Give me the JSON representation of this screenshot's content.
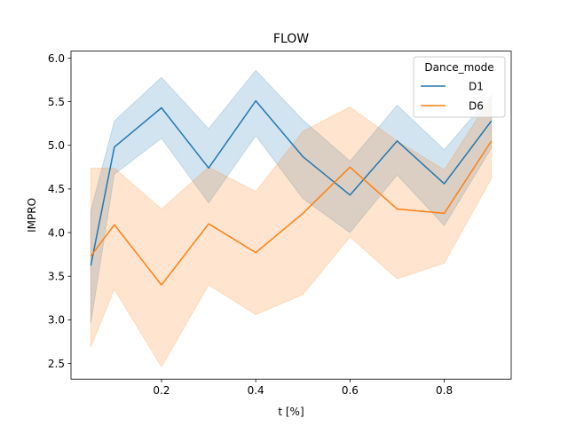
{
  "chart_data": {
    "type": "line",
    "title": "FLOW",
    "xlabel": "t [%]",
    "ylabel": "IMPRO",
    "xlim": [
      0.008,
      0.942
    ],
    "ylim": [
      2.32,
      6.08
    ],
    "xticks": [
      0.2,
      0.4,
      0.6,
      0.8
    ],
    "yticks": [
      2.5,
      3.0,
      3.5,
      4.0,
      4.5,
      5.0,
      5.5,
      6.0
    ],
    "xtick_labels": [
      "0.2",
      "0.4",
      "0.6",
      "0.8"
    ],
    "ytick_labels": [
      "2.5",
      "3.0",
      "3.5",
      "4.0",
      "4.5",
      "5.0",
      "5.5",
      "6.0"
    ],
    "grid": false,
    "legend": {
      "title": "Dance_mode",
      "position": "top-right"
    },
    "x": [
      0.05,
      0.1,
      0.2,
      0.3,
      0.4,
      0.5,
      0.6,
      0.7,
      0.8,
      0.9
    ],
    "series": [
      {
        "name": "D1",
        "color": "#1f77b4",
        "values": [
          3.62,
          4.98,
          5.43,
          4.74,
          5.51,
          4.87,
          4.43,
          5.05,
          4.56,
          5.28
        ],
        "ci_low": [
          2.96,
          4.67,
          5.08,
          4.34,
          5.11,
          4.39,
          4.0,
          4.66,
          4.08,
          4.97
        ],
        "ci_high": [
          4.25,
          5.28,
          5.78,
          5.19,
          5.86,
          5.29,
          4.82,
          5.46,
          4.95,
          5.58
        ]
      },
      {
        "name": "D6",
        "color": "#ff7f0e",
        "values": [
          3.73,
          4.09,
          3.4,
          4.1,
          3.77,
          4.22,
          4.75,
          4.27,
          4.22,
          5.05
        ],
        "ci_low": [
          2.69,
          3.35,
          2.46,
          3.4,
          3.06,
          3.29,
          3.95,
          3.47,
          3.65,
          4.62
        ],
        "ci_high": [
          4.74,
          4.74,
          4.27,
          4.75,
          4.47,
          5.16,
          5.44,
          5.05,
          4.72,
          5.56
        ]
      }
    ]
  }
}
